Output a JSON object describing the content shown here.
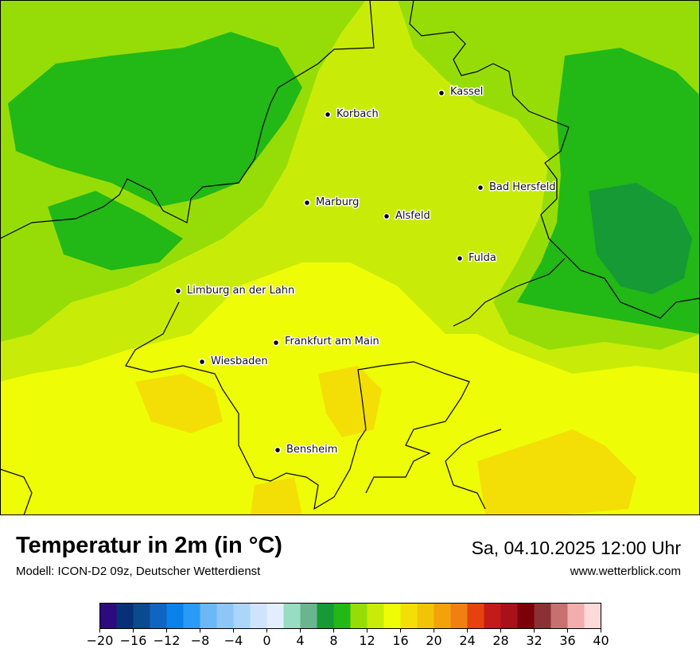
{
  "title": "Temperatur in 2m (in °C)",
  "model": "Modell: ICON-D2 09z, Deutscher Wetterdienst",
  "datetime": "Sa, 04.10.2025 12:00 Uhr",
  "website": "www.wetterblick.com",
  "cities": [
    {
      "name": "Kassel"
    },
    {
      "name": "Korbach"
    },
    {
      "name": "Bad Hersfeld"
    },
    {
      "name": "Marburg"
    },
    {
      "name": "Alsfeld"
    },
    {
      "name": "Fulda"
    },
    {
      "name": "Limburg an der Lahn"
    },
    {
      "name": "Frankfurt am Main"
    },
    {
      "name": "Wiesbaden"
    },
    {
      "name": "Bensheim"
    }
  ],
  "legend": {
    "min": -20,
    "max": 40,
    "step": 2,
    "tick_labels": [
      "−20",
      "−16",
      "−12",
      "−8",
      "−4",
      "0",
      "4",
      "8",
      "12",
      "16",
      "20",
      "24",
      "28",
      "32",
      "36",
      "40"
    ],
    "colors": [
      "#2d0a7d",
      "#08307a",
      "#0a4a8e",
      "#0e66c0",
      "#0a82ea",
      "#2a9af7",
      "#6cb8f7",
      "#8dc6f7",
      "#acd5fa",
      "#cfe4fc",
      "#e2eefd",
      "#98dcc1",
      "#6ab58e",
      "#159a35",
      "#22b816",
      "#96dd08",
      "#c8ec08",
      "#eefd06",
      "#f3df05",
      "#f1c408",
      "#f3a20a",
      "#f08012",
      "#e5420f",
      "#c31a1a",
      "#a8101a",
      "#7c0008",
      "#8c3133",
      "#c67070",
      "#f2aeae",
      "#fdd9d9"
    ]
  },
  "map_colors": {
    "dark_green": "#22b816",
    "mid_green": "#96dd08",
    "light_green": "#c8ec08",
    "yellow": "#eefd06",
    "gold": "#f3df05",
    "deep_green": "#159a35"
  }
}
